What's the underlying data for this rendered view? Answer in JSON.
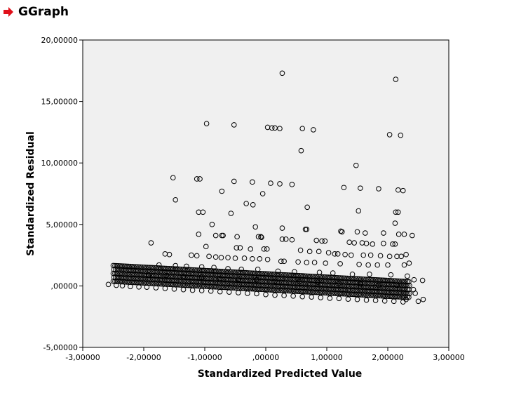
{
  "header": {
    "title": "GGraph",
    "icon": "red-arrow-icon",
    "icon_color": "#e0101a"
  },
  "chart_data": {
    "type": "scatter",
    "title": "",
    "xlabel": "Standardized Predicted Value",
    "ylabel": "Standardized Residual",
    "xlim": [
      -3,
      3
    ],
    "ylim": [
      -5,
      20
    ],
    "x_ticks": [
      -3,
      -2,
      -1,
      0,
      1,
      2,
      3
    ],
    "x_tick_labels": [
      "-3,00000",
      "-2,00000",
      "-1,00000",
      ",00000",
      "1,00000",
      "2,00000",
      "3,00000"
    ],
    "y_ticks": [
      -5,
      0,
      5,
      10,
      15,
      20
    ],
    "y_tick_labels": [
      "-5,00000",
      ",00000",
      "5,00000",
      "10,00000",
      "15,00000",
      "20,00000"
    ],
    "plot_background": "#f0f0f0",
    "marker": "open-circle",
    "series": [
      {
        "points": [
          [
            0.27,
            17.3
          ],
          [
            2.13,
            16.8
          ],
          [
            -0.97,
            13.2
          ],
          [
            -0.52,
            13.1
          ],
          [
            0.03,
            12.9
          ],
          [
            0.1,
            12.85
          ],
          [
            0.15,
            12.85
          ],
          [
            0.23,
            12.8
          ],
          [
            0.6,
            12.8
          ],
          [
            0.78,
            12.7
          ],
          [
            2.03,
            12.3
          ],
          [
            2.21,
            12.25
          ],
          [
            0.58,
            11.0
          ],
          [
            1.48,
            9.8
          ],
          [
            -1.52,
            8.8
          ],
          [
            -1.13,
            8.7
          ],
          [
            -1.08,
            8.7
          ],
          [
            -0.52,
            8.5
          ],
          [
            -0.22,
            8.45
          ],
          [
            0.08,
            8.35
          ],
          [
            0.23,
            8.3
          ],
          [
            0.43,
            8.25
          ],
          [
            1.28,
            8.0
          ],
          [
            1.55,
            7.95
          ],
          [
            1.85,
            7.9
          ],
          [
            2.17,
            7.8
          ],
          [
            2.25,
            7.75
          ],
          [
            -0.72,
            7.7
          ],
          [
            -0.05,
            7.5
          ],
          [
            -1.48,
            7.0
          ],
          [
            -0.32,
            6.7
          ],
          [
            -0.21,
            6.6
          ],
          [
            0.68,
            6.4
          ],
          [
            1.52,
            6.1
          ],
          [
            -1.1,
            6.0
          ],
          [
            -1.03,
            6.0
          ],
          [
            -0.57,
            5.9
          ],
          [
            2.13,
            6.0
          ],
          [
            2.17,
            6.0
          ],
          [
            2.12,
            5.1
          ],
          [
            -0.88,
            5.0
          ],
          [
            -0.17,
            4.8
          ],
          [
            0.27,
            4.7
          ],
          [
            0.65,
            4.6
          ],
          [
            0.67,
            4.6
          ],
          [
            1.23,
            4.45
          ],
          [
            1.25,
            4.4
          ],
          [
            1.5,
            4.4
          ],
          [
            1.63,
            4.3
          ],
          [
            1.93,
            4.3
          ],
          [
            2.18,
            4.2
          ],
          [
            2.27,
            4.2
          ],
          [
            2.4,
            4.1
          ],
          [
            -1.1,
            4.2
          ],
          [
            -0.82,
            4.1
          ],
          [
            -0.72,
            4.1
          ],
          [
            -0.7,
            4.1
          ],
          [
            -0.47,
            4.0
          ],
          [
            -0.12,
            4.0
          ],
          [
            -0.08,
            4.0
          ],
          [
            -0.07,
            3.95
          ],
          [
            0.27,
            3.8
          ],
          [
            0.33,
            3.8
          ],
          [
            0.43,
            3.75
          ],
          [
            0.83,
            3.7
          ],
          [
            0.92,
            3.65
          ],
          [
            0.97,
            3.65
          ],
          [
            1.37,
            3.55
          ],
          [
            1.45,
            3.5
          ],
          [
            1.58,
            3.5
          ],
          [
            1.65,
            3.45
          ],
          [
            1.75,
            3.4
          ],
          [
            1.93,
            3.45
          ],
          [
            2.08,
            3.4
          ],
          [
            2.12,
            3.4
          ],
          [
            -1.88,
            3.5
          ],
          [
            -0.98,
            3.2
          ],
          [
            -0.48,
            3.1
          ],
          [
            -0.42,
            3.1
          ],
          [
            -0.25,
            3.0
          ],
          [
            -0.03,
            3.0
          ],
          [
            0.02,
            3.0
          ],
          [
            0.57,
            2.9
          ],
          [
            0.72,
            2.8
          ],
          [
            0.87,
            2.8
          ],
          [
            1.03,
            2.7
          ],
          [
            1.13,
            2.6
          ],
          [
            1.18,
            2.6
          ],
          [
            1.3,
            2.55
          ],
          [
            1.4,
            2.5
          ],
          [
            1.6,
            2.5
          ],
          [
            1.72,
            2.5
          ],
          [
            1.88,
            2.45
          ],
          [
            2.03,
            2.4
          ],
          [
            2.15,
            2.4
          ],
          [
            2.22,
            2.4
          ],
          [
            2.3,
            2.55
          ],
          [
            -1.65,
            2.6
          ],
          [
            -1.58,
            2.55
          ],
          [
            -1.22,
            2.5
          ],
          [
            -1.13,
            2.45
          ],
          [
            -0.93,
            2.4
          ],
          [
            -0.82,
            2.35
          ],
          [
            -0.73,
            2.3
          ],
          [
            -0.62,
            2.3
          ],
          [
            -0.5,
            2.25
          ],
          [
            -0.35,
            2.25
          ],
          [
            -0.22,
            2.2
          ],
          [
            -0.1,
            2.2
          ],
          [
            0.03,
            2.15
          ],
          [
            0.25,
            2.0
          ],
          [
            0.3,
            2.0
          ],
          [
            0.53,
            1.95
          ],
          [
            0.67,
            1.9
          ],
          [
            0.8,
            1.9
          ],
          [
            0.98,
            1.85
          ],
          [
            1.22,
            1.8
          ],
          [
            1.53,
            1.75
          ],
          [
            1.68,
            1.7
          ],
          [
            1.83,
            1.7
          ],
          [
            2.0,
            1.7
          ],
          [
            2.27,
            1.7
          ],
          [
            2.35,
            1.85
          ],
          [
            -1.75,
            1.7
          ],
          [
            -1.48,
            1.65
          ],
          [
            -1.3,
            1.6
          ],
          [
            -1.05,
            1.55
          ],
          [
            -0.85,
            1.5
          ],
          [
            -0.62,
            1.4
          ],
          [
            -0.4,
            1.35
          ],
          [
            -0.13,
            1.35
          ],
          [
            0.2,
            1.2
          ],
          [
            0.47,
            1.15
          ],
          [
            0.88,
            1.1
          ],
          [
            1.1,
            1.05
          ],
          [
            1.42,
            0.95
          ],
          [
            1.7,
            0.95
          ],
          [
            2.05,
            0.9
          ],
          [
            2.32,
            0.8
          ],
          [
            -1.92,
            0.9
          ],
          [
            -1.63,
            0.85
          ],
          [
            -1.35,
            0.75
          ],
          [
            -1.05,
            0.7
          ],
          [
            -0.75,
            0.6
          ],
          [
            -0.45,
            0.55
          ],
          [
            -0.15,
            0.5
          ],
          [
            0.15,
            0.4
          ],
          [
            0.55,
            0.35
          ],
          [
            0.85,
            0.3
          ],
          [
            1.2,
            0.2
          ],
          [
            1.55,
            0.15
          ],
          [
            1.85,
            0.05
          ],
          [
            2.15,
            0.05
          ],
          [
            2.43,
            0.5
          ],
          [
            2.57,
            0.45
          ],
          [
            -2.58,
            0.12
          ],
          [
            -2.45,
            0.05
          ],
          [
            -2.35,
            0.02
          ],
          [
            -2.22,
            -0.05
          ],
          [
            -2.08,
            -0.08
          ],
          [
            -1.95,
            -0.1
          ],
          [
            -1.8,
            -0.15
          ],
          [
            -1.65,
            -0.2
          ],
          [
            -1.5,
            -0.25
          ],
          [
            -1.35,
            -0.3
          ],
          [
            -1.2,
            -0.35
          ],
          [
            -1.05,
            -0.38
          ],
          [
            -0.9,
            -0.42
          ],
          [
            -0.75,
            -0.47
          ],
          [
            -0.6,
            -0.5
          ],
          [
            -0.45,
            -0.55
          ],
          [
            -0.3,
            -0.6
          ],
          [
            -0.15,
            -0.63
          ],
          [
            0.0,
            -0.7
          ],
          [
            0.15,
            -0.75
          ],
          [
            0.3,
            -0.78
          ],
          [
            0.45,
            -0.82
          ],
          [
            0.6,
            -0.87
          ],
          [
            0.75,
            -0.9
          ],
          [
            0.9,
            -0.95
          ],
          [
            1.05,
            -1.0
          ],
          [
            1.2,
            -1.02
          ],
          [
            1.35,
            -1.07
          ],
          [
            1.5,
            -1.1
          ],
          [
            1.65,
            -1.15
          ],
          [
            1.8,
            -1.18
          ],
          [
            1.95,
            -1.22
          ],
          [
            2.1,
            -1.25
          ],
          [
            2.25,
            -1.3
          ],
          [
            2.3,
            -1.1
          ],
          [
            2.45,
            -0.6
          ],
          [
            2.5,
            -1.25
          ],
          [
            2.58,
            -1.1
          ],
          [
            2.42,
            -0.3
          ]
        ]
      }
    ]
  }
}
